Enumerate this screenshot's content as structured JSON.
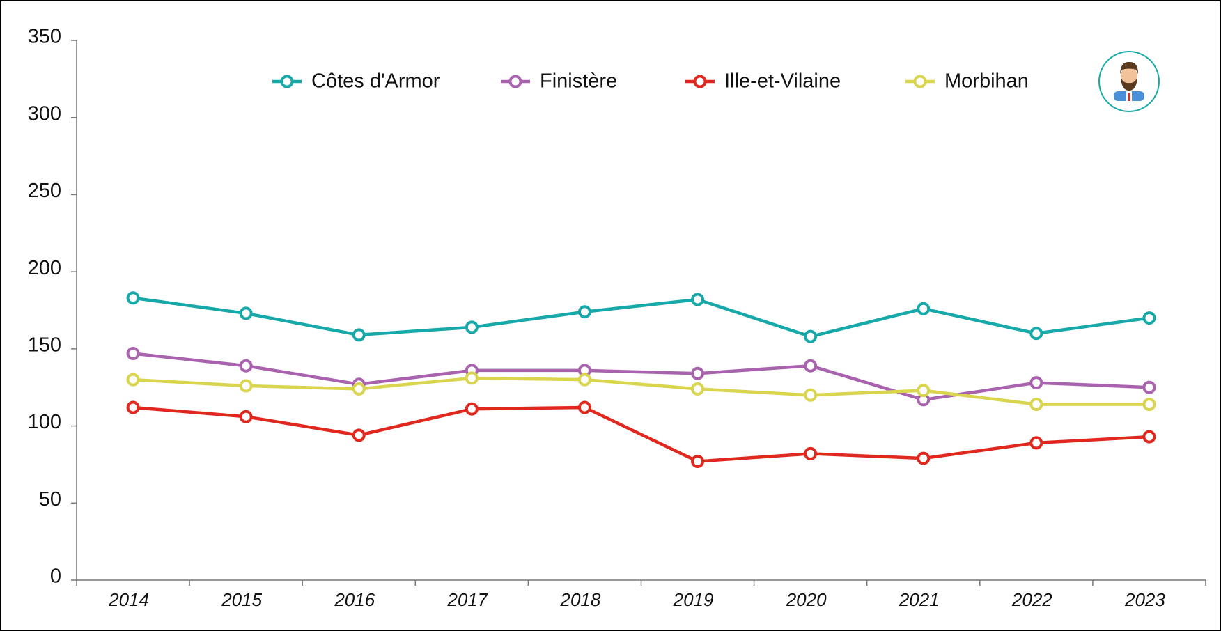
{
  "chart_data": {
    "type": "line",
    "categories": [
      "2014",
      "2015",
      "2016",
      "2017",
      "2018",
      "2019",
      "2020",
      "2021",
      "2022",
      "2023"
    ],
    "series": [
      {
        "name": "Côtes d'Armor",
        "color": "#17a9a9",
        "values": [
          183,
          173,
          159,
          164,
          174,
          182,
          158,
          176,
          160,
          170
        ]
      },
      {
        "name": "Finistère",
        "color": "#a963ae",
        "values": [
          147,
          139,
          127,
          136,
          136,
          134,
          139,
          117,
          128,
          125
        ]
      },
      {
        "name": "Ille-et-Vilaine",
        "color": "#e0281e",
        "values": [
          112,
          106,
          94,
          111,
          112,
          77,
          82,
          79,
          89,
          93
        ]
      },
      {
        "name": "Morbihan",
        "color": "#d9d54f",
        "values": [
          130,
          126,
          124,
          131,
          130,
          124,
          120,
          123,
          114,
          114
        ]
      }
    ],
    "ylim": [
      0,
      350
    ],
    "yticks": [
      0,
      50,
      100,
      150,
      200,
      250,
      300,
      350
    ],
    "legend": "top"
  }
}
